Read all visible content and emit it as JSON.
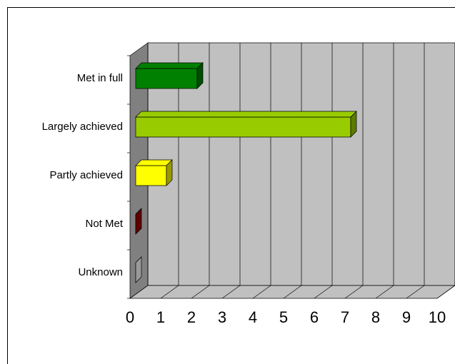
{
  "chart_data": {
    "type": "bar",
    "orientation": "horizontal",
    "categories": [
      "Met in full",
      "Largely achieved",
      "Partly achieved",
      "Not Met",
      "Unknown"
    ],
    "values": [
      2,
      7,
      1,
      0,
      0
    ],
    "colors": [
      "#008000",
      "#99cc00",
      "#ffff00",
      "#990000",
      "#ffffff"
    ],
    "xlim": [
      0,
      10
    ],
    "xticks": [
      0,
      1,
      2,
      3,
      4,
      5,
      6,
      7,
      8,
      9,
      10
    ],
    "grid": true
  }
}
